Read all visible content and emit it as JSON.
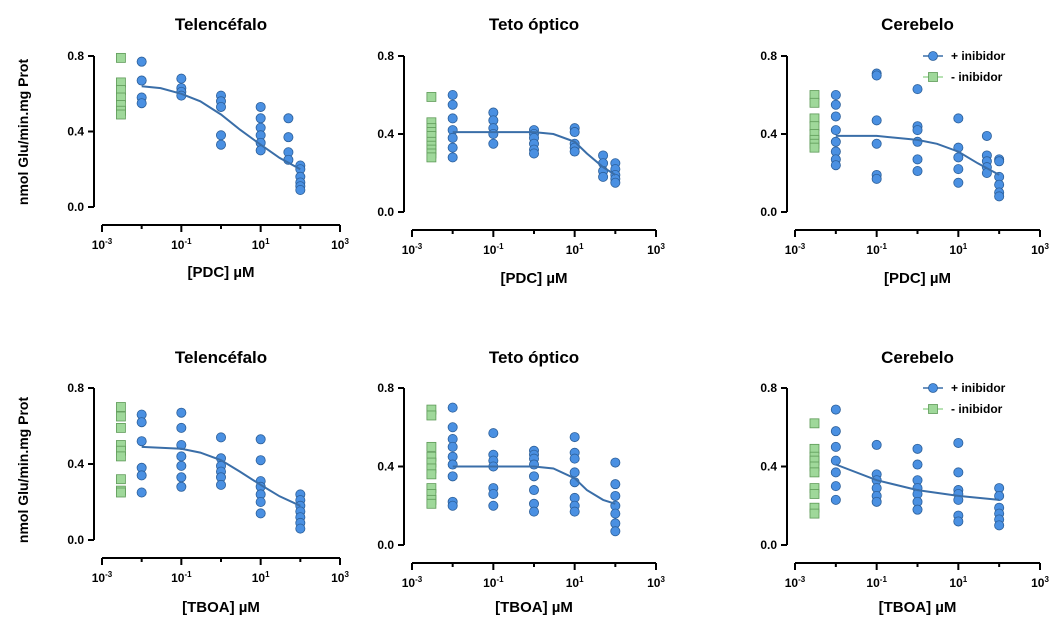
{
  "colors": {
    "inhibitor": "#4a90e2",
    "no_inhibitor": "#9fd89a",
    "curve": "#3a6ea8"
  },
  "legend": {
    "with": "+ inibidor",
    "without": "-  inibidor"
  },
  "y_label": "nmol Glu/min.mg Prot",
  "chart_data": [
    {
      "type": "scatter",
      "title": "Telencéfalo",
      "xlabel": "[PDC] µM",
      "xscale": "log",
      "xlim": [
        0.001,
        1000
      ],
      "ylim": [
        0,
        0.8
      ],
      "xticks": [
        "10-3",
        "10-1",
        "101",
        "103"
      ],
      "yticks": [
        "0.0",
        "0.4",
        "0.8"
      ],
      "legend": false,
      "series": [
        {
          "name": "- inibidor",
          "x": [
            0.003,
            0.003,
            0.003,
            0.003,
            0.003,
            0.003,
            0.003
          ],
          "y": [
            0.79,
            0.66,
            0.62,
            0.58,
            0.54,
            0.51,
            0.49
          ]
        },
        {
          "name": "+ inibidor",
          "x": [
            0.01,
            0.01,
            0.01,
            0.01,
            0.1,
            0.1,
            0.1,
            0.1,
            1,
            1,
            1,
            1,
            1,
            10,
            10,
            10,
            10,
            10,
            10,
            50,
            50,
            50,
            50,
            100,
            100,
            100,
            100,
            100,
            100
          ],
          "y": [
            0.77,
            0.67,
            0.58,
            0.55,
            0.68,
            0.63,
            0.61,
            0.59,
            0.59,
            0.56,
            0.53,
            0.38,
            0.33,
            0.53,
            0.47,
            0.42,
            0.38,
            0.34,
            0.3,
            0.47,
            0.37,
            0.29,
            0.25,
            0.22,
            0.2,
            0.16,
            0.13,
            0.11,
            0.09
          ]
        },
        {
          "name": "fit",
          "kind": "curve",
          "x": [
            0.01,
            0.03,
            0.1,
            0.3,
            1,
            3,
            10,
            30,
            100
          ],
          "y": [
            0.64,
            0.63,
            0.6,
            0.56,
            0.49,
            0.41,
            0.33,
            0.26,
            0.2
          ]
        }
      ]
    },
    {
      "type": "scatter",
      "title": "Teto óptico",
      "xlabel": "[PDC] µM",
      "xscale": "log",
      "xlim": [
        0.001,
        1000
      ],
      "ylim": [
        0,
        0.8
      ],
      "xticks": [
        "10-3",
        "10-1",
        "101",
        "103"
      ],
      "yticks": [
        "0.0",
        "0.4",
        "0.8"
      ],
      "legend": false,
      "series": [
        {
          "name": "- inibidor",
          "x": [
            0.003,
            0.003,
            0.003,
            0.003,
            0.003,
            0.003,
            0.003,
            0.003,
            0.003,
            0.003
          ],
          "y": [
            0.59,
            0.46,
            0.43,
            0.41,
            0.39,
            0.36,
            0.34,
            0.32,
            0.3,
            0.28
          ]
        },
        {
          "name": "+ inibidor",
          "x": [
            0.01,
            0.01,
            0.01,
            0.01,
            0.01,
            0.01,
            0.01,
            0.1,
            0.1,
            0.1,
            0.1,
            0.1,
            1,
            1,
            1,
            1,
            1,
            1,
            10,
            10,
            10,
            10,
            10,
            50,
            50,
            50,
            50,
            100,
            100,
            100,
            100,
            100
          ],
          "y": [
            0.6,
            0.55,
            0.48,
            0.42,
            0.38,
            0.33,
            0.28,
            0.51,
            0.47,
            0.43,
            0.4,
            0.35,
            0.42,
            0.4,
            0.38,
            0.35,
            0.32,
            0.3,
            0.43,
            0.41,
            0.35,
            0.33,
            0.31,
            0.29,
            0.25,
            0.21,
            0.18,
            0.25,
            0.22,
            0.19,
            0.17,
            0.15
          ]
        },
        {
          "name": "fit",
          "kind": "curve",
          "x": [
            0.01,
            0.1,
            1,
            3,
            10,
            20,
            50,
            100
          ],
          "y": [
            0.41,
            0.41,
            0.41,
            0.4,
            0.36,
            0.3,
            0.23,
            0.19
          ]
        }
      ]
    },
    {
      "type": "scatter",
      "title": "Cerebelo",
      "xlabel": "[PDC] µM",
      "xscale": "log",
      "xlim": [
        0.001,
        1000
      ],
      "ylim": [
        0,
        0.8
      ],
      "xticks": [
        "10-3",
        "10-1",
        "101",
        "103"
      ],
      "yticks": [
        "0.0",
        "0.4",
        "0.8"
      ],
      "legend": true,
      "series": [
        {
          "name": "- inibidor",
          "x": [
            0.003,
            0.003,
            0.003,
            0.003,
            0.003,
            0.003,
            0.003,
            0.003
          ],
          "y": [
            0.6,
            0.56,
            0.48,
            0.44,
            0.4,
            0.37,
            0.35,
            0.33
          ]
        },
        {
          "name": "+ inibidor",
          "x": [
            0.01,
            0.01,
            0.01,
            0.01,
            0.01,
            0.01,
            0.01,
            0.01,
            0.1,
            0.1,
            0.1,
            0.1,
            0.1,
            0.1,
            1,
            1,
            1,
            1,
            1,
            1,
            10,
            10,
            10,
            10,
            10,
            50,
            50,
            50,
            50,
            50,
            100,
            100,
            100,
            100,
            100,
            100
          ],
          "y": [
            0.6,
            0.55,
            0.49,
            0.42,
            0.36,
            0.31,
            0.27,
            0.24,
            0.71,
            0.7,
            0.47,
            0.35,
            0.19,
            0.17,
            0.63,
            0.44,
            0.42,
            0.36,
            0.27,
            0.21,
            0.48,
            0.33,
            0.28,
            0.22,
            0.15,
            0.39,
            0.29,
            0.26,
            0.23,
            0.2,
            0.27,
            0.26,
            0.18,
            0.14,
            0.1,
            0.08
          ]
        },
        {
          "name": "fit",
          "kind": "curve",
          "x": [
            0.01,
            0.1,
            1,
            3,
            10,
            30,
            100
          ],
          "y": [
            0.39,
            0.39,
            0.37,
            0.35,
            0.31,
            0.25,
            0.19
          ]
        }
      ]
    },
    {
      "type": "scatter",
      "title": "Telencéfalo",
      "xlabel": "[TBOA] µM",
      "xscale": "log",
      "xlim": [
        0.001,
        1000
      ],
      "ylim": [
        0,
        0.8
      ],
      "xticks": [
        "10-3",
        "10-1",
        "101",
        "103"
      ],
      "yticks": [
        "0.0",
        "0.4",
        "0.8"
      ],
      "legend": false,
      "series": [
        {
          "name": "- inibidor",
          "x": [
            0.003,
            0.003,
            0.003,
            0.003,
            0.003,
            0.003,
            0.003,
            0.003,
            0.003
          ],
          "y": [
            0.7,
            0.65,
            0.59,
            0.5,
            0.47,
            0.44,
            0.32,
            0.26,
            0.25
          ]
        },
        {
          "name": "+ inibidor",
          "x": [
            0.01,
            0.01,
            0.01,
            0.01,
            0.01,
            0.01,
            0.1,
            0.1,
            0.1,
            0.1,
            0.1,
            0.1,
            0.1,
            1,
            1,
            1,
            1,
            1,
            1,
            10,
            10,
            10,
            10,
            10,
            10,
            10,
            100,
            100,
            100,
            100,
            100,
            100,
            100
          ],
          "y": [
            0.66,
            0.62,
            0.52,
            0.38,
            0.34,
            0.25,
            0.67,
            0.59,
            0.5,
            0.44,
            0.39,
            0.33,
            0.28,
            0.54,
            0.43,
            0.39,
            0.36,
            0.33,
            0.29,
            0.53,
            0.42,
            0.31,
            0.28,
            0.24,
            0.2,
            0.14,
            0.24,
            0.21,
            0.18,
            0.15,
            0.12,
            0.09,
            0.06
          ]
        },
        {
          "name": "fit",
          "kind": "curve",
          "x": [
            0.01,
            0.1,
            0.3,
            1,
            3,
            10,
            30,
            100
          ],
          "y": [
            0.49,
            0.48,
            0.46,
            0.42,
            0.36,
            0.29,
            0.23,
            0.18
          ]
        }
      ]
    },
    {
      "type": "scatter",
      "title": "Teto óptico",
      "xlabel": "[TBOA] µM",
      "xscale": "log",
      "xlim": [
        0.001,
        1000
      ],
      "ylim": [
        0,
        0.8
      ],
      "xticks": [
        "10-3",
        "10-1",
        "101",
        "103"
      ],
      "yticks": [
        "0.0",
        "0.4",
        "0.8"
      ],
      "legend": false,
      "series": [
        {
          "name": "- inibidor",
          "x": [
            0.003,
            0.003,
            0.003,
            0.003,
            0.003,
            0.003,
            0.003,
            0.003,
            0.003,
            0.003,
            0.003
          ],
          "y": [
            0.69,
            0.66,
            0.5,
            0.45,
            0.42,
            0.39,
            0.36,
            0.29,
            0.26,
            0.23,
            0.21
          ]
        },
        {
          "name": "+ inibidor",
          "x": [
            0.01,
            0.01,
            0.01,
            0.01,
            0.01,
            0.01,
            0.01,
            0.01,
            0.01,
            0.1,
            0.1,
            0.1,
            0.1,
            0.1,
            0.1,
            0.1,
            1,
            1,
            1,
            1,
            1,
            1,
            1,
            1,
            10,
            10,
            10,
            10,
            10,
            10,
            10,
            10,
            100,
            100,
            100,
            100,
            100,
            100,
            100
          ],
          "y": [
            0.7,
            0.6,
            0.54,
            0.5,
            0.45,
            0.41,
            0.35,
            0.22,
            0.2,
            0.57,
            0.46,
            0.43,
            0.4,
            0.29,
            0.26,
            0.2,
            0.48,
            0.46,
            0.44,
            0.41,
            0.35,
            0.28,
            0.21,
            0.17,
            0.55,
            0.47,
            0.44,
            0.37,
            0.32,
            0.24,
            0.2,
            0.17,
            0.42,
            0.31,
            0.25,
            0.2,
            0.16,
            0.11,
            0.07
          ]
        },
        {
          "name": "fit",
          "kind": "curve",
          "x": [
            0.01,
            0.1,
            1,
            3,
            10,
            20,
            50,
            100
          ],
          "y": [
            0.4,
            0.4,
            0.4,
            0.39,
            0.34,
            0.28,
            0.23,
            0.21
          ]
        }
      ]
    },
    {
      "type": "scatter",
      "title": "Cerebelo",
      "xlabel": "[TBOA] µM",
      "xscale": "log",
      "xlim": [
        0.001,
        1000
      ],
      "ylim": [
        0,
        0.8
      ],
      "xticks": [
        "10-3",
        "10-1",
        "101",
        "103"
      ],
      "yticks": [
        "0.0",
        "0.4",
        "0.8"
      ],
      "legend": true,
      "series": [
        {
          "name": "- inibidor",
          "x": [
            0.003,
            0.003,
            0.003,
            0.003,
            0.003,
            0.003,
            0.003,
            0.003,
            0.003,
            0.003
          ],
          "y": [
            0.62,
            0.49,
            0.45,
            0.43,
            0.4,
            0.37,
            0.29,
            0.26,
            0.19,
            0.16
          ]
        },
        {
          "name": "+ inibidor",
          "x": [
            0.01,
            0.01,
            0.01,
            0.01,
            0.01,
            0.01,
            0.01,
            0.1,
            0.1,
            0.1,
            0.1,
            0.1,
            0.1,
            1,
            1,
            1,
            1,
            1,
            1,
            1,
            10,
            10,
            10,
            10,
            10,
            10,
            10,
            100,
            100,
            100,
            100,
            100,
            100
          ],
          "y": [
            0.69,
            0.58,
            0.5,
            0.43,
            0.37,
            0.3,
            0.23,
            0.51,
            0.36,
            0.33,
            0.29,
            0.25,
            0.22,
            0.49,
            0.41,
            0.33,
            0.29,
            0.26,
            0.22,
            0.18,
            0.52,
            0.37,
            0.28,
            0.26,
            0.23,
            0.15,
            0.12,
            0.29,
            0.25,
            0.19,
            0.16,
            0.13,
            0.1
          ]
        },
        {
          "name": "fit",
          "kind": "curve",
          "x": [
            0.01,
            0.1,
            1,
            10,
            100
          ],
          "y": [
            0.41,
            0.33,
            0.28,
            0.25,
            0.23
          ]
        }
      ]
    }
  ]
}
